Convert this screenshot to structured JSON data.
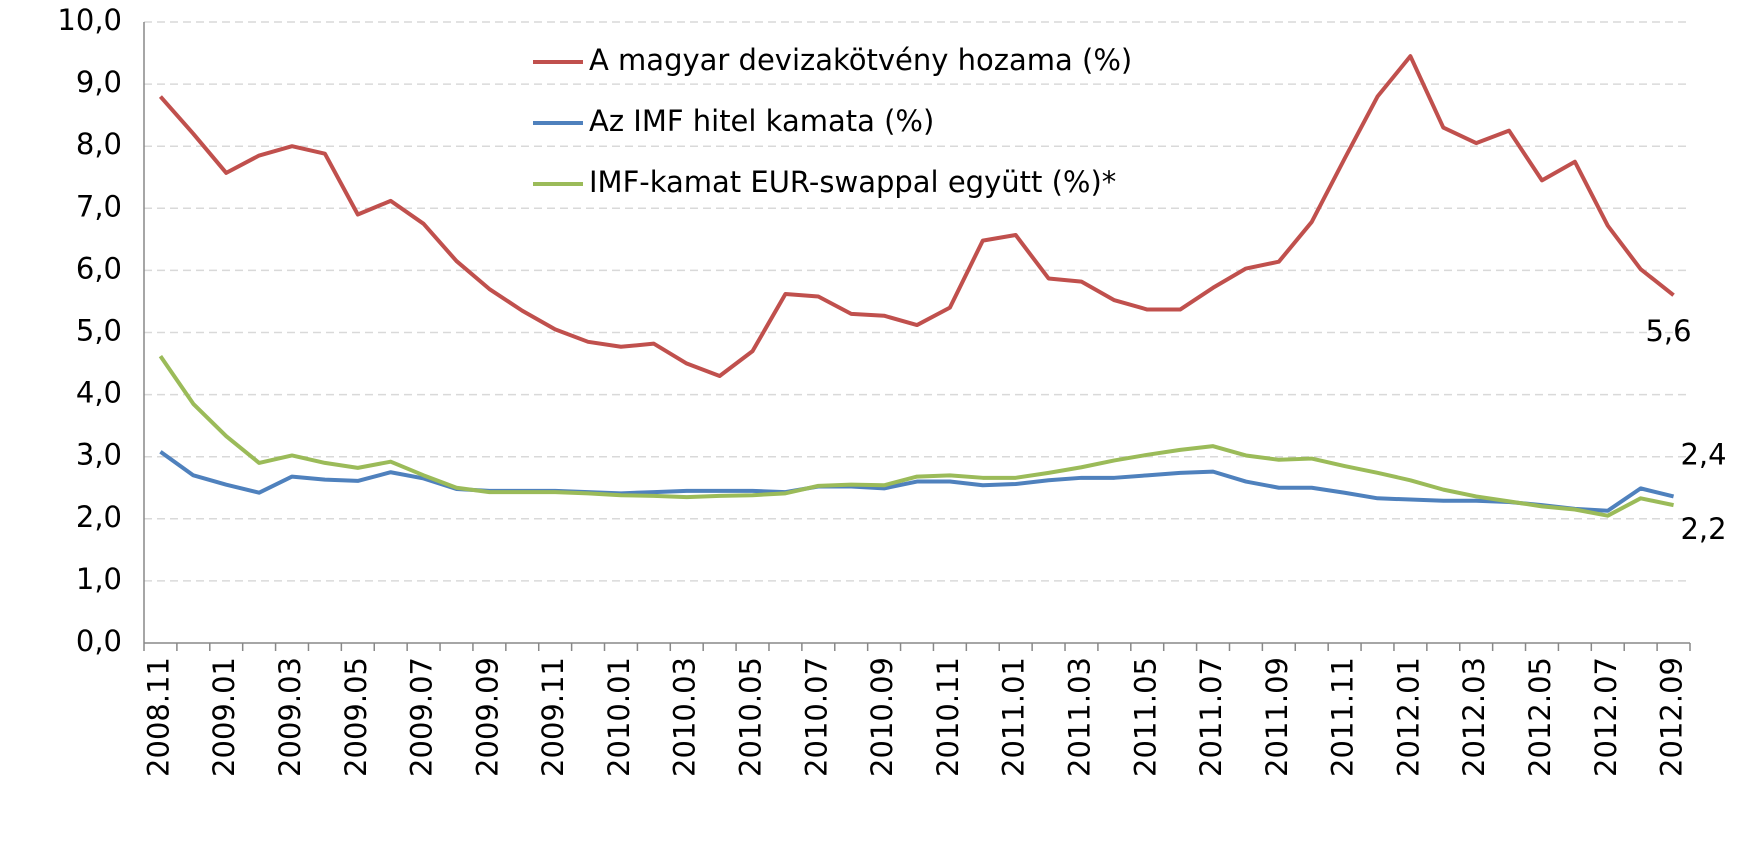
{
  "chart_data": {
    "type": "line",
    "categories": [
      "2008.11",
      null,
      "2009.01",
      null,
      "2009.03",
      null,
      "2009.05",
      null,
      "2009.07",
      null,
      "2009.09",
      null,
      "2009.11",
      null,
      "2010.01",
      null,
      "2010.03",
      null,
      "2010.05",
      null,
      "2010.07",
      null,
      "2010.09",
      null,
      "2010.11",
      null,
      "2011.01",
      null,
      "2011.03",
      null,
      "2011.05",
      null,
      "2011.07",
      null,
      "2011.09",
      null,
      "2011.11",
      null,
      "2012.01",
      null,
      "2012.03",
      null,
      "2012.05",
      null,
      "2012.07",
      null,
      "2012.09"
    ],
    "series": [
      {
        "name": "A magyar devizakötvény hozama (%)",
        "color": "#c0504d",
        "values": [
          8.8,
          8.2,
          7.57,
          7.85,
          8.0,
          7.88,
          6.9,
          7.12,
          6.75,
          6.15,
          5.7,
          5.35,
          5.05,
          4.85,
          4.77,
          4.82,
          4.5,
          4.3,
          4.7,
          5.62,
          5.58,
          5.3,
          5.27,
          5.12,
          5.4,
          6.48,
          6.57,
          5.87,
          5.82,
          5.52,
          5.37,
          5.37,
          5.72,
          6.03,
          6.14,
          6.78,
          7.8,
          8.8,
          9.45,
          8.3,
          8.05,
          8.25,
          7.45,
          7.75,
          6.72,
          6.02,
          5.6
        ],
        "value_labels": [
          null,
          null,
          null,
          null,
          null,
          null,
          null,
          null,
          null,
          null,
          null,
          null,
          null,
          null,
          null,
          null,
          null,
          null,
          null,
          null,
          null,
          null,
          null,
          null,
          null,
          null,
          null,
          null,
          null,
          null,
          null,
          null,
          null,
          null,
          null,
          null,
          null,
          null,
          null,
          null,
          null,
          null,
          null,
          null,
          null,
          null,
          "5,6"
        ]
      },
      {
        "name": "Az IMF hitel kamata (%)",
        "color": "#4f81bd",
        "values": [
          3.08,
          2.7,
          2.55,
          2.42,
          2.68,
          2.63,
          2.61,
          2.75,
          2.65,
          2.48,
          2.45,
          2.45,
          2.45,
          2.43,
          2.41,
          2.43,
          2.45,
          2.45,
          2.45,
          2.43,
          2.52,
          2.52,
          2.49,
          2.6,
          2.6,
          2.54,
          2.56,
          2.62,
          2.66,
          2.66,
          2.7,
          2.74,
          2.76,
          2.6,
          2.5,
          2.5,
          2.42,
          2.33,
          2.31,
          2.29,
          2.29,
          2.27,
          2.22,
          2.16,
          2.13,
          2.49,
          2.36
        ],
        "value_labels": [
          null,
          null,
          null,
          null,
          null,
          null,
          null,
          null,
          null,
          null,
          null,
          null,
          null,
          null,
          null,
          null,
          null,
          null,
          null,
          null,
          null,
          null,
          null,
          null,
          null,
          null,
          null,
          null,
          null,
          null,
          null,
          null,
          null,
          null,
          null,
          null,
          null,
          null,
          null,
          null,
          null,
          null,
          null,
          null,
          null,
          null,
          "2,4"
        ]
      },
      {
        "name": "IMF-kamat EUR-swappal együtt (%)*",
        "color": "#9bbb59",
        "values": [
          4.62,
          3.85,
          3.33,
          2.9,
          3.02,
          2.9,
          2.82,
          2.92,
          2.7,
          2.5,
          2.43,
          2.43,
          2.43,
          2.41,
          2.38,
          2.37,
          2.35,
          2.37,
          2.38,
          2.41,
          2.53,
          2.55,
          2.54,
          2.68,
          2.7,
          2.66,
          2.66,
          2.74,
          2.83,
          2.94,
          3.03,
          3.11,
          3.17,
          3.02,
          2.95,
          2.97,
          2.85,
          2.74,
          2.62,
          2.47,
          2.36,
          2.28,
          2.2,
          2.15,
          2.05,
          2.33,
          2.22
        ],
        "value_labels": [
          null,
          null,
          null,
          null,
          null,
          null,
          null,
          null,
          null,
          null,
          null,
          null,
          null,
          null,
          null,
          null,
          null,
          null,
          null,
          null,
          null,
          null,
          null,
          null,
          null,
          null,
          null,
          null,
          null,
          null,
          null,
          null,
          null,
          null,
          null,
          null,
          null,
          null,
          null,
          null,
          null,
          null,
          null,
          null,
          null,
          null,
          "2,2"
        ]
      }
    ],
    "ylim": [
      0,
      10
    ],
    "yticks": [
      {
        "value": 0,
        "label": "0,0"
      },
      {
        "value": 1,
        "label": "1,0"
      },
      {
        "value": 2,
        "label": "2,0"
      },
      {
        "value": 3,
        "label": "3,0"
      },
      {
        "value": 4,
        "label": "4,0"
      },
      {
        "value": 5,
        "label": "5,0"
      },
      {
        "value": 6,
        "label": "6,0"
      },
      {
        "value": 7,
        "label": "7,0"
      },
      {
        "value": 8,
        "label": "8,0"
      },
      {
        "value": 9,
        "label": "9,0"
      },
      {
        "value": 10,
        "label": "10,0"
      }
    ],
    "grid": true,
    "legend": "top"
  }
}
